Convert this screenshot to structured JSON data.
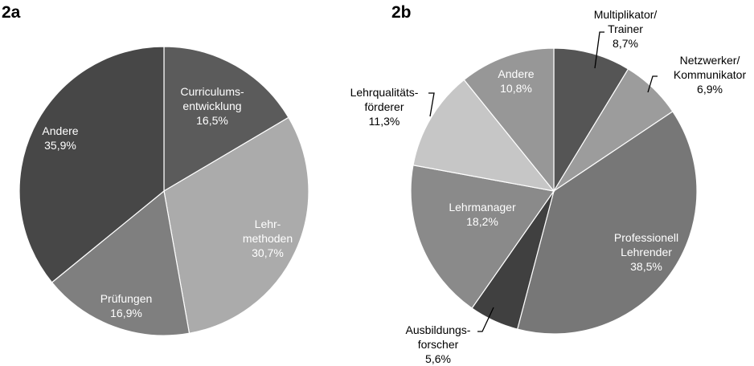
{
  "chart_data": [
    {
      "type": "pie",
      "panel_label": "2a",
      "start_angle_deg": 0,
      "direction": "clockwise",
      "slices": [
        {
          "name": "Curriculums-entwicklung",
          "lines": [
            "Curriculums-",
            "entwicklung",
            "16,5%"
          ],
          "value": 16.5,
          "color": "#5b5b5b",
          "text_color": "#ffffff"
        },
        {
          "name": "Lehr-methoden",
          "lines": [
            "Lehr-",
            "methoden",
            "30,7%"
          ],
          "value": 30.7,
          "color": "#ababab",
          "text_color": "#ffffff"
        },
        {
          "name": "Prüfungen",
          "lines": [
            "Prüfungen",
            "16,9%"
          ],
          "value": 16.9,
          "color": "#7f7f7f",
          "text_color": "#ffffff"
        },
        {
          "name": "Andere",
          "lines": [
            "Andere",
            "35,9%"
          ],
          "value": 35.9,
          "color": "#474747",
          "text_color": "#ffffff"
        }
      ]
    },
    {
      "type": "pie",
      "panel_label": "2b",
      "start_angle_deg": 0,
      "direction": "clockwise",
      "slices": [
        {
          "name": "Multiplikator/Trainer",
          "lines": [
            "Multiplikator/",
            "Trainer",
            "8,7%"
          ],
          "value": 8.7,
          "color": "#555555",
          "text_color": "#000000",
          "outside": true
        },
        {
          "name": "Netzwerker/Kommunikator",
          "lines": [
            "Netzwerker/",
            "Kommunikator",
            "6,9%"
          ],
          "value": 6.9,
          "color": "#9c9c9c",
          "text_color": "#000000",
          "outside": true
        },
        {
          "name": "Professionell Lehrender",
          "lines": [
            "Professionell",
            "Lehrender",
            "38,5%"
          ],
          "value": 38.5,
          "color": "#777777",
          "text_color": "#ffffff"
        },
        {
          "name": "Ausbildungs-forscher",
          "lines": [
            "Ausbildungs-",
            "forscher",
            "5,6%"
          ],
          "value": 5.6,
          "color": "#404040",
          "text_color": "#000000",
          "outside": true
        },
        {
          "name": "Lehrmanager",
          "lines": [
            "Lehrmanager",
            "18,2%"
          ],
          "value": 18.2,
          "color": "#8a8a8a",
          "text_color": "#ffffff"
        },
        {
          "name": "Lehrqualitäts-förderer",
          "lines": [
            "Lehrqualitäts-",
            "förderer",
            "11,3%"
          ],
          "value": 11.3,
          "color": "#c6c6c6",
          "text_color": "#000000",
          "outside": true
        },
        {
          "name": "Andere",
          "lines": [
            "Andere",
            "10,8%"
          ],
          "value": 10.8,
          "color": "#979797",
          "text_color": "#ffffff"
        }
      ]
    }
  ]
}
